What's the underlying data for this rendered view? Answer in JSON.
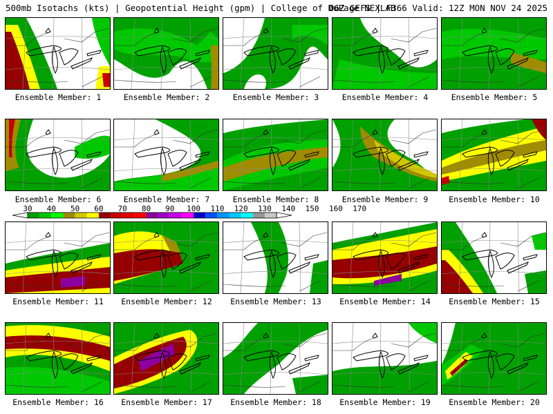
{
  "header": {
    "left": "500mb Isotachs (kts) | Geopotential Height (gpm) | College of DuPage NEXLAB",
    "right": "06Z GEFS | F366 Valid: 12Z MON NOV 24 2025"
  },
  "legend": {
    "ticks": [
      "30",
      "40",
      "50",
      "60",
      "70",
      "80",
      "90",
      "100",
      "110",
      "120",
      "130",
      "140",
      "150",
      "160",
      "170"
    ],
    "colors": [
      "#00a000",
      "#00c800",
      "#00ff00",
      "#a08c00",
      "#d2c800",
      "#ffff00",
      "#960000",
      "#c80000",
      "#e60000",
      "#ff0000",
      "#8c00a0",
      "#a000c8",
      "#c800e6",
      "#ff00ff",
      "#0000c8",
      "#0050ff",
      "#0096ff",
      "#00c8ff",
      "#00ffff",
      "#969696",
      "#c8c8c8"
    ]
  },
  "panels": [
    {
      "label": "Ensemble Member: 1"
    },
    {
      "label": "Ensemble Member: 2"
    },
    {
      "label": "Ensemble Member: 3"
    },
    {
      "label": "Ensemble Member: 4"
    },
    {
      "label": "Ensemble Member: 5"
    },
    {
      "label": "Ensemble Member: 6"
    },
    {
      "label": "Ensemble Member: 7"
    },
    {
      "label": "Ensemble Member: 8"
    },
    {
      "label": "Ensemble Member: 9"
    },
    {
      "label": "Ensemble Member: 10"
    },
    {
      "label": "Ensemble Member: 11"
    },
    {
      "label": "Ensemble Member: 12"
    },
    {
      "label": "Ensemble Member: 13"
    },
    {
      "label": "Ensemble Member: 14"
    },
    {
      "label": "Ensemble Member: 15"
    },
    {
      "label": "Ensemble Member: 16"
    },
    {
      "label": "Ensemble Member: 17"
    },
    {
      "label": "Ensemble Member: 18"
    },
    {
      "label": "Ensemble Member: 19"
    },
    {
      "label": "Ensemble Member: 20"
    }
  ]
}
